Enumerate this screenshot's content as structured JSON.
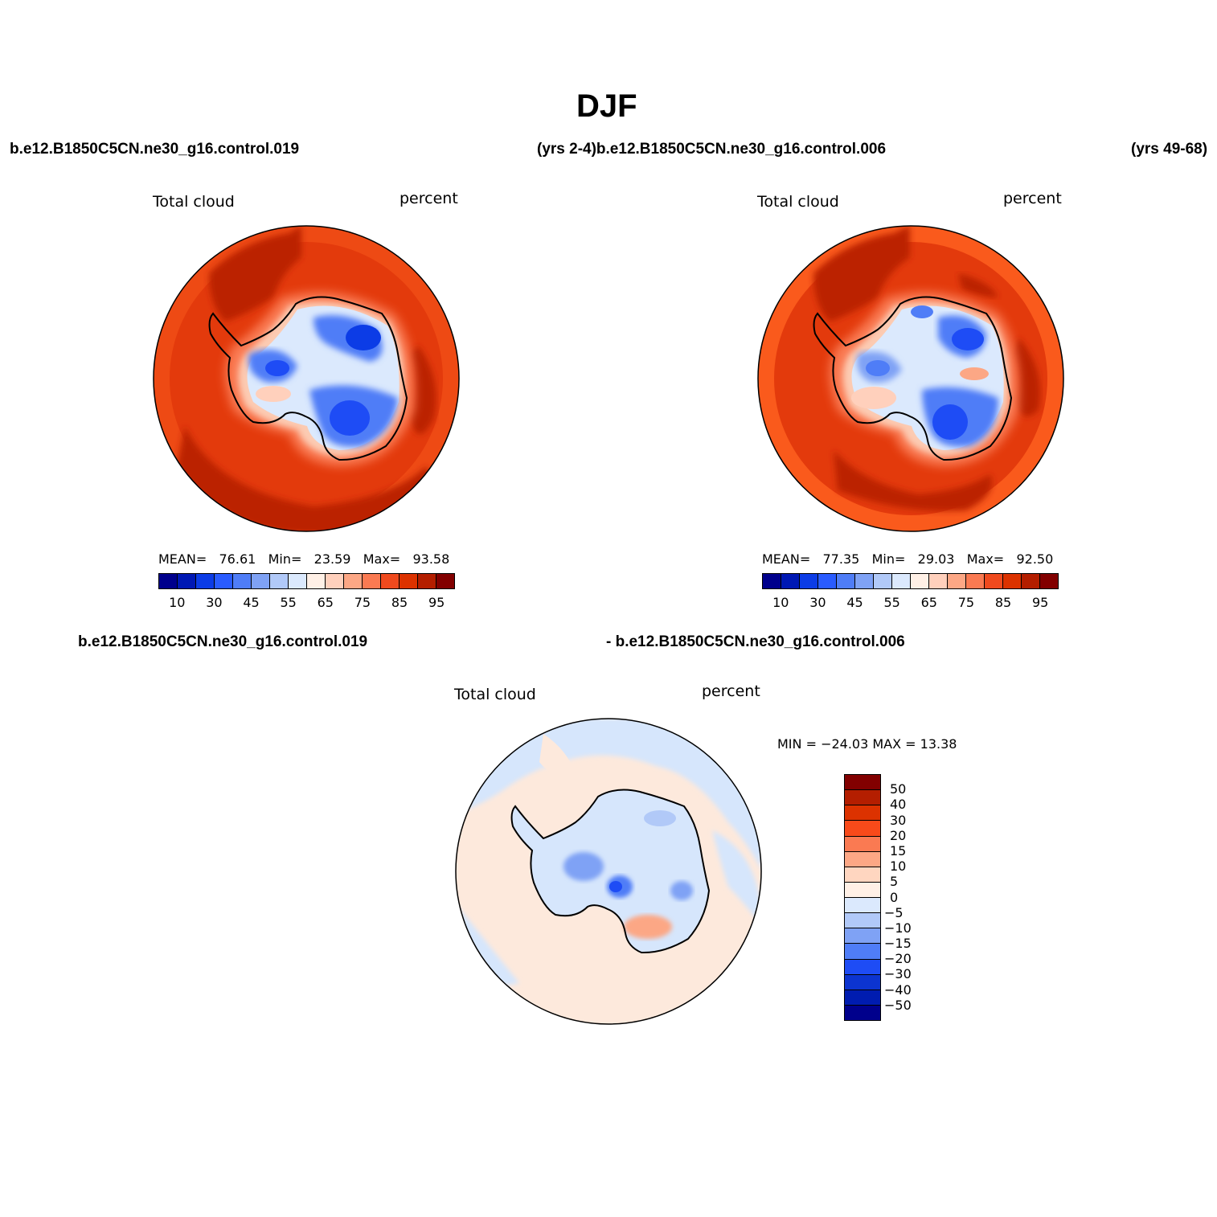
{
  "title": "DJF",
  "header": {
    "case1": "b.e12.B1850C5CN.ne30_g16.control.019",
    "years1_case2": "(yrs 2-4)b.e12.B1850C5CN.ne30_g16.control.006",
    "years2": "(yrs 49-68)"
  },
  "panel1": {
    "left_label": "Total cloud",
    "right_label": "percent",
    "stats": {
      "mean_label": "MEAN=",
      "mean": "76.61",
      "min_label": "Min=",
      "min": "23.59",
      "max_label": "Max=",
      "max": "93.58"
    }
  },
  "panel2": {
    "left_label": "Total cloud",
    "right_label": "percent",
    "stats": {
      "mean_label": "MEAN=",
      "mean": "77.35",
      "min_label": "Min=",
      "min": "29.03",
      "max_label": "Max=",
      "max": "92.50"
    }
  },
  "diff_header": {
    "left": "b.e12.B1850C5CN.ne30_g16.control.019",
    "right": "- b.e12.B1850C5CN.ne30_g16.control.006"
  },
  "panel3": {
    "left_label": "Total cloud",
    "right_label": "percent",
    "minmax": "MIN = −24.03 MAX =   13.38"
  },
  "colorbar_abs": {
    "ticks": [
      "10",
      "30",
      "45",
      "55",
      "65",
      "75",
      "85",
      "95"
    ],
    "colors": [
      "#00008c",
      "#0018b4",
      "#0c3ce6",
      "#2a5cff",
      "#4f7df7",
      "#7fa2f5",
      "#b1c9f8",
      "#dbe9fd",
      "#fff0e6",
      "#ffd0bc",
      "#fca785",
      "#fa7a52",
      "#f04a1e",
      "#dc3200",
      "#b41e00",
      "#820000"
    ]
  },
  "colorbar_diff": {
    "ticks": [
      "50",
      "40",
      "30",
      "20",
      "15",
      "10",
      "5",
      "0",
      "−5",
      "−10",
      "−15",
      "−20",
      "−30",
      "−40",
      "−50"
    ],
    "colors": [
      "#820000",
      "#b41e00",
      "#dc3200",
      "#f84a1a",
      "#fa7a52",
      "#fca785",
      "#ffd6c0",
      "#fff0e6",
      "#dbe9fd",
      "#b1c9f8",
      "#7fa2f5",
      "#4f7df7",
      "#1e4cf5",
      "#0c34d0",
      "#001cb0",
      "#00008c"
    ]
  },
  "map_colors": {
    "ocean_base": "#e33a0c",
    "ocean_dark": "#bb2400",
    "diff_ocean": "#fde9dc",
    "diff_light_blue": "#d6e6fc",
    "coast": "#000000"
  }
}
